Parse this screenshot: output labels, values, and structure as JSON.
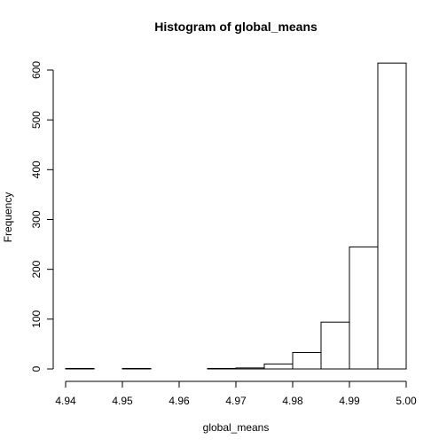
{
  "chart_data": {
    "type": "bar",
    "title": "Histogram of global_means",
    "xlabel": "global_means",
    "ylabel": "Frequency",
    "xlim": [
      4.94,
      5.0
    ],
    "ylim": [
      0,
      600
    ],
    "x_ticks": [
      "4.94",
      "4.95",
      "4.96",
      "4.97",
      "4.98",
      "4.99",
      "5.00"
    ],
    "y_ticks": [
      "0",
      "100",
      "200",
      "300",
      "400",
      "500",
      "600"
    ],
    "bin_edges": [
      4.94,
      4.945,
      4.95,
      4.955,
      4.96,
      4.965,
      4.97,
      4.975,
      4.98,
      4.985,
      4.99,
      4.995,
      5.0
    ],
    "values": [
      1,
      0,
      1,
      0,
      0,
      1,
      2,
      10,
      33,
      94,
      245,
      614
    ],
    "grid": false,
    "legend": "none"
  }
}
